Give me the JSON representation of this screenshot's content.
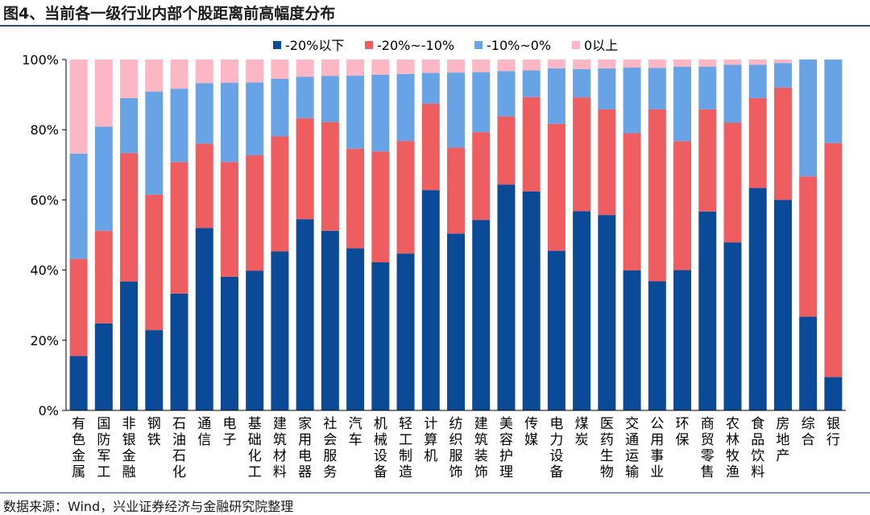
{
  "figure": {
    "title": "图4、当前各一级行业内部个股距离前高幅度分布",
    "source": "数据来源：Wind，兴业证券经济与金融研究院整理"
  },
  "chart_data": {
    "type": "bar",
    "stacked": true,
    "title": "图4、当前各一级行业内部个股距离前高幅度分布",
    "xlabel": "",
    "ylabel": "",
    "ylim": [
      0,
      100
    ],
    "yticks": [
      "0%",
      "20%",
      "40%",
      "60%",
      "80%",
      "100%"
    ],
    "legend_position": "top-right",
    "categories": [
      "有色金属",
      "国防军工",
      "非银金融",
      "钢铁",
      "石油石化",
      "通信",
      "电子",
      "基础化工",
      "建筑材料",
      "家用电器",
      "社会服务",
      "汽车",
      "机械设备",
      "轻工制造",
      "计算机",
      "纺织服饰",
      "建筑装饰",
      "美容护理",
      "传媒",
      "电力设备",
      "煤炭",
      "医药生物",
      "交通运输",
      "公用事业",
      "环保",
      "商贸零售",
      "农林牧渔",
      "食品饮料",
      "房地产",
      "综合",
      "银行"
    ],
    "series": [
      {
        "name": "-20%以下",
        "color": "#0b4a96",
        "values": [
          15.5,
          24.8,
          36.7,
          22.9,
          33.3,
          52.0,
          38.1,
          39.8,
          45.3,
          54.5,
          51.2,
          46.2,
          42.2,
          44.7,
          62.8,
          50.4,
          54.3,
          64.4,
          62.4,
          45.5,
          56.8,
          55.7,
          39.9,
          36.8,
          40.0,
          56.7,
          47.9,
          63.4,
          60.0,
          26.7,
          9.5
        ]
      },
      {
        "name": "-20%~-10%",
        "color": "#ee5e61",
        "values": [
          27.7,
          26.4,
          36.6,
          38.6,
          37.5,
          24.0,
          32.7,
          32.9,
          32.8,
          28.8,
          31.0,
          28.4,
          31.6,
          32.1,
          24.6,
          24.5,
          25.0,
          19.4,
          26.9,
          36.2,
          32.4,
          30.1,
          39.1,
          49.0,
          36.7,
          29.1,
          34.1,
          25.6,
          32.0,
          40.0,
          66.7
        ]
      },
      {
        "name": "-10%~0%",
        "color": "#68a3e6",
        "values": [
          30.0,
          29.7,
          15.7,
          29.4,
          20.9,
          17.3,
          22.6,
          20.8,
          16.4,
          11.8,
          13.1,
          20.8,
          21.9,
          19.1,
          8.8,
          21.4,
          17.1,
          12.9,
          7.6,
          15.8,
          8.1,
          11.7,
          18.7,
          11.8,
          21.3,
          12.2,
          16.5,
          9.5,
          7.0,
          33.3,
          23.8
        ]
      },
      {
        "name": "0以上",
        "color": "#fcb6c4",
        "values": [
          26.8,
          19.1,
          11.0,
          9.1,
          8.3,
          6.7,
          6.6,
          6.5,
          5.5,
          4.9,
          4.7,
          4.6,
          4.3,
          4.1,
          3.8,
          3.7,
          3.6,
          3.3,
          3.1,
          2.5,
          2.7,
          2.5,
          2.3,
          2.4,
          2.0,
          2.0,
          1.5,
          1.5,
          1.0,
          0.0,
          0.0
        ]
      }
    ]
  }
}
